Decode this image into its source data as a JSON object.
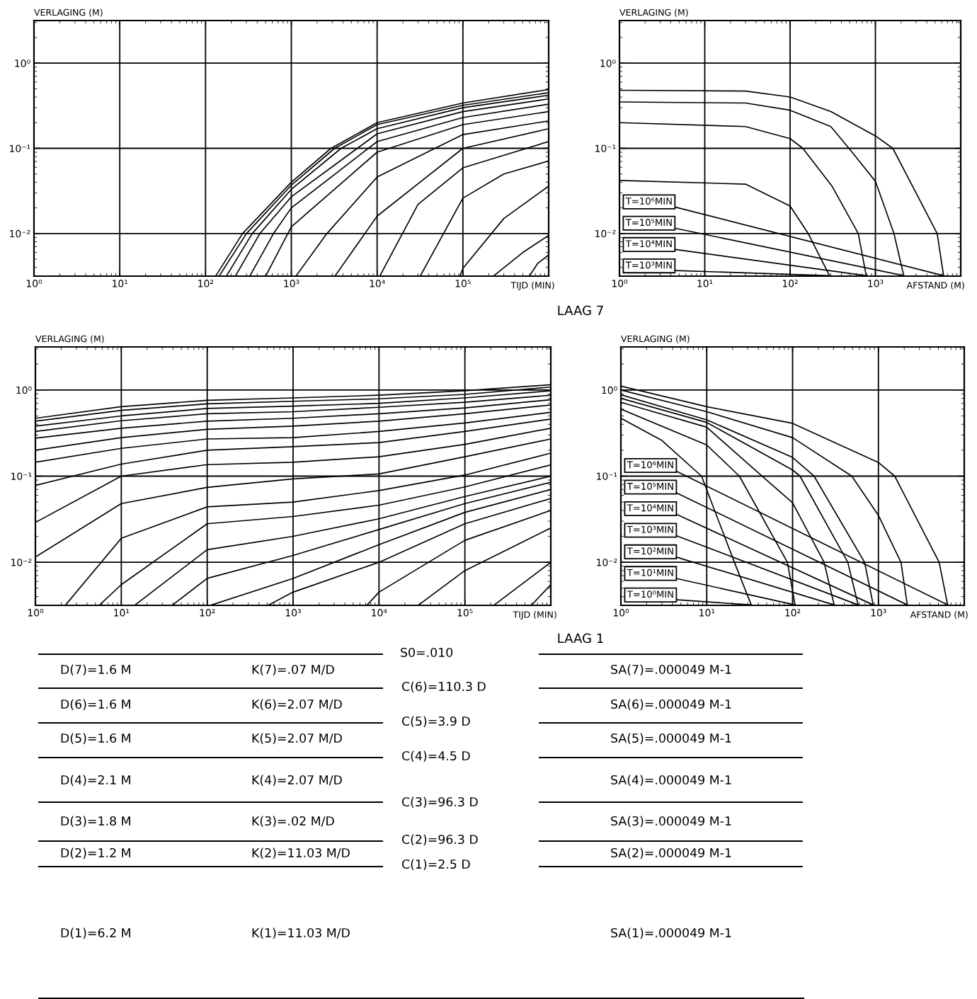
{
  "chart_data": [
    {
      "type": "line",
      "ylabel": "VERLAGING (M)",
      "xlabel": "TIJD (MIN)",
      "log": "xy",
      "grid": true,
      "xlim": [
        1,
        1000000
      ],
      "ylim": [
        0.003162,
        3.162
      ],
      "xticks": [
        {
          "value": 1,
          "label": "10⁰"
        },
        {
          "value": 10,
          "label": "10¹"
        },
        {
          "value": 100,
          "label": "10²"
        },
        {
          "value": 1000,
          "label": "10³"
        },
        {
          "value": 10000,
          "label": "10⁴"
        },
        {
          "value": 100000,
          "label": "10⁵"
        }
      ],
      "yticks": [
        {
          "value": 0.01,
          "label": "10⁻²"
        },
        {
          "value": 0.1,
          "label": "10⁻¹"
        },
        {
          "value": 1,
          "label": "10⁰"
        }
      ],
      "series": [
        {
          "color": "#000000",
          "x": [
            132,
            270,
            1000,
            2900,
            10000,
            100000,
            1000000
          ],
          "values": [
            0.0032,
            0.01,
            0.04,
            0.1,
            0.2,
            0.34,
            0.49
          ]
        },
        {
          "color": "#000000",
          "x": [
            145,
            300,
            1000,
            3200,
            10000,
            100000,
            1000000
          ],
          "values": [
            0.0032,
            0.01,
            0.037,
            0.1,
            0.19,
            0.32,
            0.45
          ]
        },
        {
          "color": "#000000",
          "x": [
            176,
            350,
            1000,
            3800,
            10000,
            100000,
            1000000
          ],
          "values": [
            0.0032,
            0.01,
            0.033,
            0.1,
            0.17,
            0.3,
            0.42
          ]
        },
        {
          "color": "#000000",
          "x": [
            224,
            430,
            1000,
            10000,
            100000,
            1000000
          ],
          "values": [
            0.0032,
            0.01,
            0.027,
            0.148,
            0.27,
            0.38
          ]
        },
        {
          "color": "#000000",
          "x": [
            330,
            620,
            1000,
            10000,
            100000,
            1000000
          ],
          "values": [
            0.0032,
            0.01,
            0.02,
            0.12,
            0.23,
            0.33
          ]
        },
        {
          "color": "#000000",
          "x": [
            505,
            1000,
            10000,
            100000,
            1000000
          ],
          "values": [
            0.0032,
            0.012,
            0.09,
            0.19,
            0.27
          ]
        },
        {
          "color": "#000000",
          "x": [
            1140,
            2600,
            10000,
            100000,
            1000000
          ],
          "values": [
            0.0032,
            0.01,
            0.046,
            0.145,
            0.21
          ]
        },
        {
          "color": "#000000",
          "x": [
            3250,
            10000,
            100000,
            1000000
          ],
          "values": [
            0.0032,
            0.016,
            0.1,
            0.17
          ]
        },
        {
          "color": "#000000",
          "x": [
            10800,
            30000,
            100000,
            1000000
          ],
          "values": [
            0.0032,
            0.022,
            0.059,
            0.12
          ]
        },
        {
          "color": "#000000",
          "x": [
            32000,
            100000,
            300000,
            1000000
          ],
          "values": [
            0.0032,
            0.026,
            0.05,
            0.071
          ]
        },
        {
          "color": "#000000",
          "x": [
            93000,
            100000,
            300000,
            1000000
          ],
          "values": [
            0.0032,
            0.0039,
            0.015,
            0.036
          ]
        },
        {
          "color": "#000000",
          "x": [
            230000,
            500000,
            1000000
          ],
          "values": [
            0.0032,
            0.006,
            0.0095
          ]
        },
        {
          "color": "#000000",
          "x": [
            600000,
            750000,
            1000000
          ],
          "values": [
            0.0032,
            0.0045,
            0.0056
          ]
        }
      ]
    },
    {
      "type": "line",
      "ylabel": "VERLAGING (M)",
      "xlabel": "AFSTAND (M)",
      "log": "xy",
      "grid": true,
      "xlim": [
        1,
        10000
      ],
      "ylim": [
        0.003162,
        3.162
      ],
      "xticks": [
        {
          "value": 1,
          "label": "10⁰"
        },
        {
          "value": 10,
          "label": "10¹"
        },
        {
          "value": 100,
          "label": "10²"
        },
        {
          "value": 1000,
          "label": "10³"
        }
      ],
      "yticks": [
        {
          "value": 0.01,
          "label": "10⁻²"
        },
        {
          "value": 0.1,
          "label": "10⁻¹"
        },
        {
          "value": 1,
          "label": "10⁰"
        }
      ],
      "series": [
        {
          "color": "#000000",
          "x": [
            1,
            30,
            100,
            300,
            1000,
            1600,
            5300,
            6300
          ],
          "values": [
            0.48,
            0.47,
            0.4,
            0.27,
            0.14,
            0.1,
            0.01,
            0.0032
          ]
        },
        {
          "color": "#000000",
          "x": [
            1,
            30,
            100,
            300,
            490,
            1000,
            1650,
            2150
          ],
          "values": [
            0.35,
            0.34,
            0.28,
            0.18,
            0.1,
            0.041,
            0.01,
            0.0032
          ]
        },
        {
          "color": "#000000",
          "x": [
            1,
            30,
            100,
            141,
            310,
            630,
            780
          ],
          "values": [
            0.2,
            0.18,
            0.13,
            0.1,
            0.036,
            0.01,
            0.0032
          ]
        },
        {
          "color": "#000000",
          "x": [
            1,
            30,
            100,
            163,
            290
          ],
          "values": [
            0.042,
            0.038,
            0.021,
            0.01,
            0.0032
          ]
        }
      ],
      "annotations": [
        {
          "text": "T=10⁶MIN",
          "x": 6300,
          "y": 0.0032
        },
        {
          "text": "T=10⁵MIN",
          "x": 2150,
          "y": 0.0032
        },
        {
          "text": "T=10⁴MIN",
          "x": 780,
          "y": 0.0032
        },
        {
          "text": "T=10³MIN",
          "x": 290,
          "y": 0.0032
        }
      ]
    },
    {
      "type": "other",
      "title": "LAAG 7"
    },
    {
      "type": "line",
      "ylabel": "VERLAGING (M)",
      "xlabel": "TIJD (MIN)",
      "log": "xy",
      "grid": true,
      "xlim": [
        1,
        1000000
      ],
      "ylim": [
        0.003162,
        3.162
      ],
      "xticks": [
        {
          "value": 1,
          "label": "10⁰"
        },
        {
          "value": 10,
          "label": "10¹"
        },
        {
          "value": 100,
          "label": "10²"
        },
        {
          "value": 1000,
          "label": "10³"
        },
        {
          "value": 10000,
          "label": "10⁴"
        },
        {
          "value": 100000,
          "label": "10⁵"
        }
      ],
      "yticks": [
        {
          "value": 0.01,
          "label": "10⁻²"
        },
        {
          "value": 0.1,
          "label": "10⁻¹"
        },
        {
          "value": 1,
          "label": "10⁰"
        }
      ],
      "series": [
        {
          "color": "#000000",
          "x": [
            1,
            10,
            100,
            1000,
            10000,
            100000,
            1000000
          ],
          "values": [
            0.47,
            0.64,
            0.76,
            0.81,
            0.87,
            0.98,
            1.15
          ]
        },
        {
          "color": "#000000",
          "x": [
            1,
            10,
            100,
            1000,
            10000,
            100000,
            1000000
          ],
          "values": [
            0.435,
            0.58,
            0.69,
            0.74,
            0.79,
            0.89,
            1.08
          ]
        },
        {
          "color": "#000000",
          "x": [
            1,
            10,
            100,
            1000,
            10000,
            100000,
            1000000
          ],
          "values": [
            0.38,
            0.5,
            0.61,
            0.65,
            0.7,
            0.81,
            0.98
          ]
        },
        {
          "color": "#000000",
          "x": [
            1,
            10,
            100,
            1000,
            10000,
            100000,
            1000000
          ],
          "values": [
            0.33,
            0.44,
            0.53,
            0.56,
            0.63,
            0.72,
            0.87
          ]
        },
        {
          "color": "#000000",
          "x": [
            1,
            10,
            100,
            1000,
            10000,
            100000,
            1000000
          ],
          "values": [
            0.276,
            0.36,
            0.435,
            0.47,
            0.53,
            0.62,
            0.77
          ]
        },
        {
          "color": "#000000",
          "x": [
            1,
            10,
            100,
            1000,
            10000,
            100000,
            1000000
          ],
          "values": [
            0.2,
            0.28,
            0.35,
            0.38,
            0.435,
            0.53,
            0.67
          ]
        },
        {
          "color": "#000000",
          "x": [
            1,
            10,
            100,
            1000,
            10000,
            100000,
            1000000
          ],
          "values": [
            0.145,
            0.21,
            0.27,
            0.28,
            0.33,
            0.415,
            0.55
          ]
        },
        {
          "color": "#000000",
          "x": [
            1,
            10,
            100,
            1000,
            10000,
            100000,
            1000000
          ],
          "values": [
            0.078,
            0.138,
            0.2,
            0.22,
            0.245,
            0.33,
            0.46
          ]
        },
        {
          "color": "#000000",
          "x": [
            1,
            10,
            100,
            1000,
            10000,
            100000,
            1000000
          ],
          "values": [
            0.029,
            0.1,
            0.136,
            0.145,
            0.168,
            0.234,
            0.36
          ]
        },
        {
          "color": "#000000",
          "x": [
            1,
            10,
            100,
            1000,
            10000,
            100000,
            1000000
          ],
          "values": [
            0.0115,
            0.048,
            0.074,
            0.093,
            0.106,
            0.168,
            0.27
          ]
        },
        {
          "color": "#000000",
          "x": [
            2.25,
            10,
            100,
            1000,
            10000,
            100000,
            1000000
          ],
          "values": [
            0.0032,
            0.019,
            0.044,
            0.05,
            0.068,
            0.103,
            0.185
          ]
        },
        {
          "color": "#000000",
          "x": [
            5.6,
            10,
            100,
            1000,
            10000,
            100000,
            1000000
          ],
          "values": [
            0.0032,
            0.0055,
            0.028,
            0.034,
            0.046,
            0.075,
            0.135
          ]
        },
        {
          "color": "#000000",
          "x": [
            14.5,
            100,
            1000,
            10000,
            100000,
            1000000
          ],
          "values": [
            0.0032,
            0.014,
            0.02,
            0.032,
            0.058,
            0.1
          ]
        },
        {
          "color": "#000000",
          "x": [
            39.6,
            100,
            1000,
            10000,
            100000,
            1000000
          ],
          "values": [
            0.0032,
            0.0065,
            0.012,
            0.024,
            0.048,
            0.085
          ]
        },
        {
          "color": "#000000",
          "x": [
            113,
            1000,
            10000,
            100000,
            1000000
          ],
          "values": [
            0.0032,
            0.0065,
            0.016,
            0.038,
            0.07
          ]
        },
        {
          "color": "#000000",
          "x": [
            520,
            1000,
            10000,
            100000,
            1000000
          ],
          "values": [
            0.0032,
            0.0045,
            0.01,
            0.028,
            0.055
          ]
        },
        {
          "color": "#000000",
          "x": [
            7300,
            10000,
            100000,
            1000000
          ],
          "values": [
            0.0032,
            0.0045,
            0.018,
            0.04
          ]
        },
        {
          "color": "#000000",
          "x": [
            29000,
            100000,
            1000000
          ],
          "values": [
            0.0032,
            0.008,
            0.025
          ]
        },
        {
          "color": "#000000",
          "x": [
            220000,
            1000000
          ],
          "values": [
            0.0032,
            0.01
          ]
        },
        {
          "color": "#000000",
          "x": [
            600000,
            1000000
          ],
          "values": [
            0.0032,
            0.0055
          ]
        }
      ]
    },
    {
      "type": "line",
      "ylabel": "VERLAGING (M)",
      "xlabel": "AFSTAND (M)",
      "log": "xy",
      "grid": true,
      "xlim": [
        1,
        10000
      ],
      "ylim": [
        0.003162,
        3.162
      ],
      "xticks": [
        {
          "value": 1,
          "label": "10⁰"
        },
        {
          "value": 10,
          "label": "10¹"
        },
        {
          "value": 100,
          "label": "10²"
        },
        {
          "value": 1000,
          "label": "10³"
        }
      ],
      "yticks": [
        {
          "value": 0.01,
          "label": "10⁻²"
        },
        {
          "value": 0.1,
          "label": "10⁻¹"
        },
        {
          "value": 1,
          "label": "10⁰"
        }
      ],
      "series": [
        {
          "color": "#000000",
          "x": [
            1,
            10,
            100,
            1000,
            1550,
            5100,
            6400
          ],
          "values": [
            1.11,
            0.64,
            0.41,
            0.144,
            0.1,
            0.01,
            0.0032
          ]
        },
        {
          "color": "#000000",
          "x": [
            1,
            10,
            100,
            490,
            1000,
            1830,
            2170
          ],
          "values": [
            1.0,
            0.56,
            0.28,
            0.1,
            0.035,
            0.01,
            0.0032
          ]
        },
        {
          "color": "#000000",
          "x": [
            1,
            10,
            100,
            178,
            690,
            870
          ],
          "values": [
            0.88,
            0.45,
            0.165,
            0.1,
            0.01,
            0.0032
          ]
        },
        {
          "color": "#000000",
          "x": [
            1,
            10,
            100,
            122,
            440,
            580
          ],
          "values": [
            0.8,
            0.42,
            0.118,
            0.1,
            0.01,
            0.0032
          ]
        },
        {
          "color": "#000000",
          "x": [
            1,
            10,
            44,
            100,
            233,
            305
          ],
          "values": [
            0.72,
            0.37,
            0.1,
            0.049,
            0.01,
            0.0032
          ]
        },
        {
          "color": "#000000",
          "x": [
            1,
            10,
            24,
            87,
            107
          ],
          "values": [
            0.6,
            0.23,
            0.1,
            0.01,
            0.0032
          ]
        },
        {
          "color": "#000000",
          "x": [
            1,
            3,
            8.7,
            21,
            33
          ],
          "values": [
            0.47,
            0.26,
            0.1,
            0.01,
            0.0032
          ]
        }
      ],
      "annotations": [
        {
          "text": "T=10⁶MIN",
          "x": 6400,
          "y": 0.0032
        },
        {
          "text": "T=10⁵MIN",
          "x": 2170,
          "y": 0.0032
        },
        {
          "text": "T=10⁴MIN",
          "x": 870,
          "y": 0.0032
        },
        {
          "text": "T=10³MIN",
          "x": 580,
          "y": 0.0032
        },
        {
          "text": "T=10²MIN",
          "x": 305,
          "y": 0.0032
        },
        {
          "text": "T=10¹MIN",
          "x": 107,
          "y": 0.0032
        },
        {
          "text": "T=10⁰MIN",
          "x": 33,
          "y": 0.0032
        }
      ]
    },
    {
      "type": "other",
      "title": "LAAG 1",
      "annotations": [
        "S0=.010",
        "D(7)=1.6 M",
        "K(7)=.07 M/D",
        "SA(7)=.000049 M-1",
        "C(6)=110.3 D",
        "D(6)=1.6 M",
        "K(6)=2.07 M/D",
        "SA(6)=.000049 M-1",
        "C(5)=3.9 D",
        "D(5)=1.6 M",
        "K(5)=2.07 M/D",
        "SA(5)=.000049 M-1",
        "C(4)=4.5 D",
        "D(4)=2.1 M",
        "K(4)=2.07 M/D",
        "SA(4)=.000049 M-1",
        "C(3)=96.3 D",
        "D(3)=1.8 M",
        "K(3)=.02 M/D",
        "SA(3)=.000049 M-1",
        "C(2)=96.3 D",
        "D(2)=1.2 M",
        "K(2)=11.03 M/D",
        "SA(2)=.000049 M-1",
        "C(1)=2.5 D",
        "D(1)=6.2 M",
        "K(1)=11.03 M/D",
        "SA(1)=.000049 M-1"
      ]
    }
  ]
}
